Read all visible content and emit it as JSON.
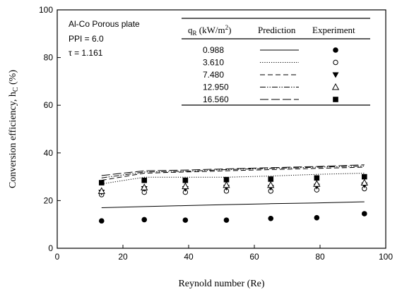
{
  "chart_data": {
    "type": "scatter",
    "xlabel": "Reynold number (Re)",
    "ylabel": "Conversion efficiency, h",
    "ylabel_sub": "C",
    "ylabel_unit": " (%)",
    "xlim": [
      0,
      100
    ],
    "ylim": [
      0,
      100
    ],
    "xticks": [
      0,
      20,
      40,
      60,
      80,
      100
    ],
    "yticks": [
      0,
      20,
      40,
      60,
      80,
      100
    ],
    "grid": false,
    "annotations": [
      "Al-Co Porous plate",
      "PPI = 6.0",
      "τ = 1.161"
    ],
    "legend": {
      "placement": "top-right",
      "col1_header": "q",
      "col1_header_sub": "R",
      "col1_header_unit": " (kW/m",
      "col1_header_sup": "2",
      "col1_header_close": ")",
      "col2_header": "Prediction",
      "col3_header": "Experiment"
    },
    "x": [
      13.5,
      26.5,
      39,
      51.5,
      65,
      79,
      93.5
    ],
    "series": [
      {
        "name": "0.988",
        "line_style": "solid",
        "marker": "filled-circle",
        "experiment": [
          11.5,
          12,
          11.8,
          11.8,
          12.5,
          12.8,
          14.5
        ],
        "prediction_x": [
          13.5,
          26.5,
          39,
          51.5,
          65,
          79,
          93.5
        ],
        "prediction": [
          17,
          17.5,
          17.9,
          18.3,
          18.7,
          19,
          19.5
        ]
      },
      {
        "name": "3.610",
        "line_style": "dotted",
        "marker": "open-circle",
        "experiment": [
          22.5,
          23.5,
          23.5,
          24,
          24,
          24.5,
          25
        ],
        "prediction_x": [
          13.5,
          26.5,
          39,
          51.5,
          65,
          79,
          93.5
        ],
        "prediction": [
          27,
          29.8,
          29.8,
          29.8,
          30.3,
          31,
          31.5
        ]
      },
      {
        "name": "7.480",
        "line_style": "dashed",
        "marker": "filled-triangle-down",
        "experiment": [
          23.5,
          25,
          25,
          25.5,
          25.5,
          26,
          26.5
        ],
        "prediction_x": [
          13.5,
          26.5,
          39,
          51.5,
          65,
          79,
          93.5
        ],
        "prediction": [
          28.5,
          31.5,
          32,
          32.5,
          33,
          33.5,
          34
        ]
      },
      {
        "name": "12.950",
        "line_style": "dash-dot-dot",
        "marker": "open-triangle-up",
        "experiment": [
          24,
          25.5,
          26,
          26.5,
          26.5,
          27,
          27.5
        ],
        "prediction_x": [
          13.5,
          26.5,
          39,
          51.5,
          65,
          79,
          93.5
        ],
        "prediction": [
          29.5,
          32,
          32.3,
          33,
          33.5,
          34,
          34.5
        ]
      },
      {
        "name": "16.560",
        "line_style": "long-dash",
        "marker": "filled-square",
        "experiment": [
          27.5,
          28.5,
          28.5,
          28.8,
          29,
          29.5,
          30
        ],
        "prediction_x": [
          13.5,
          26.5,
          39,
          51.5,
          65,
          79,
          93.5
        ],
        "prediction": [
          30.5,
          32.5,
          32.8,
          33.3,
          33.8,
          34.3,
          35
        ]
      }
    ]
  }
}
